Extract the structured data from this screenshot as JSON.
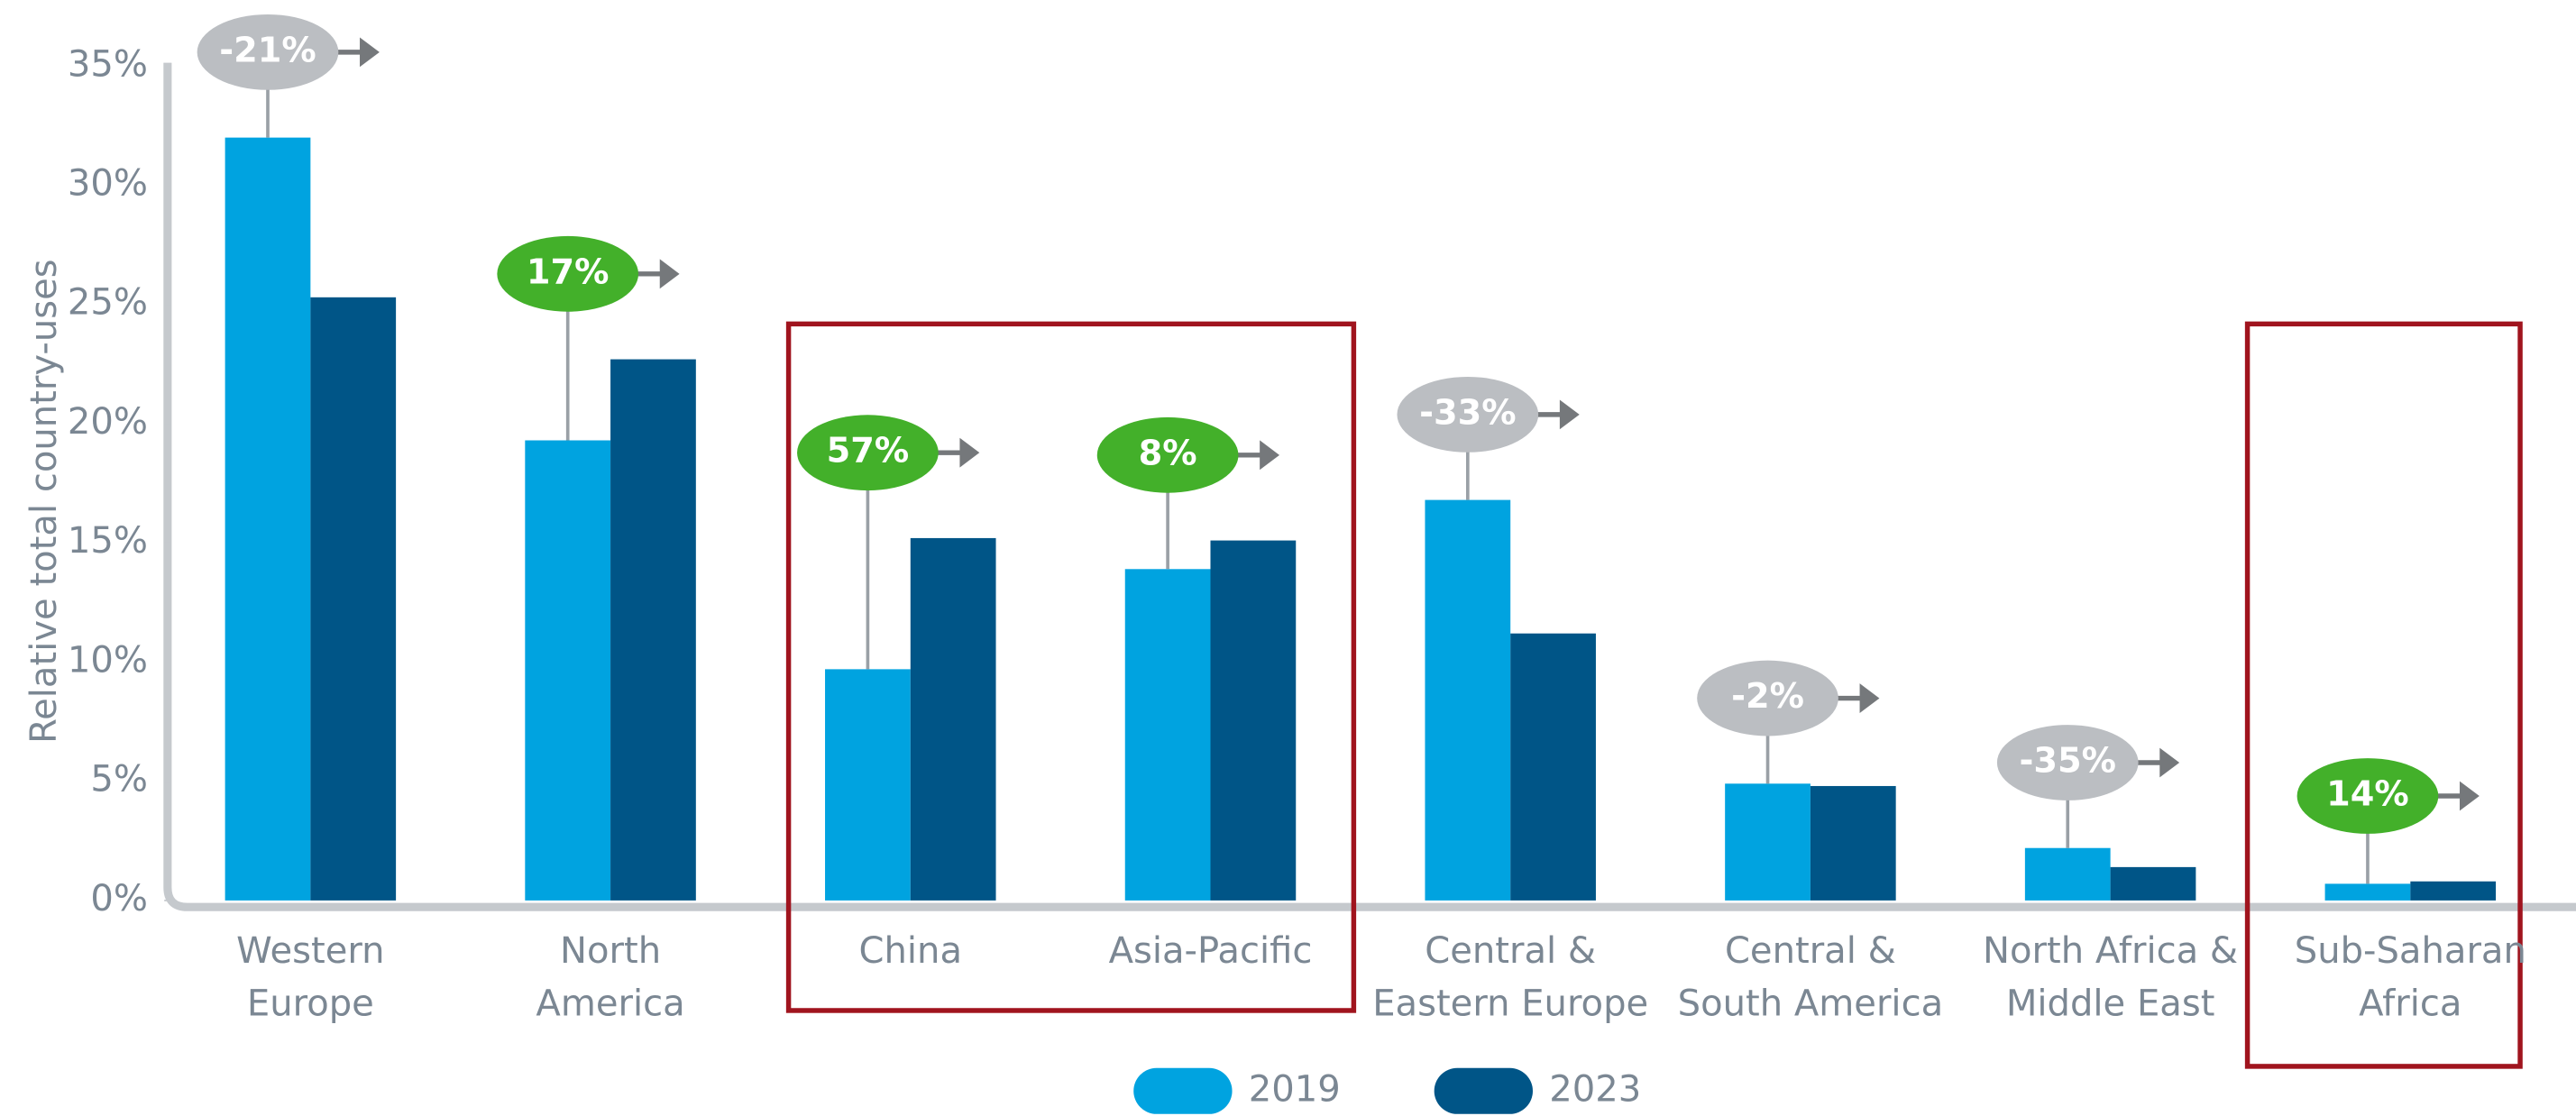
{
  "chart_data": {
    "type": "bar",
    "y_label": "Relative total country-uses",
    "categories": [
      [
        "Western",
        "Europe"
      ],
      [
        "North",
        "America"
      ],
      [
        "China"
      ],
      [
        "Asia-Pacific"
      ],
      [
        "Central &",
        "Eastern Europe"
      ],
      [
        "Central &",
        "South America"
      ],
      [
        "North Africa &",
        "Middle East"
      ],
      [
        "Sub-Saharan",
        "Africa"
      ]
    ],
    "series": [
      {
        "name": "2019",
        "color": "#00a3e0",
        "values": [
          32,
          19.3,
          9.7,
          13.9,
          16.8,
          4.9,
          2.2,
          0.7
        ]
      },
      {
        "name": "2023",
        "color": "#005587",
        "values": [
          25.3,
          22.7,
          15.2,
          15.1,
          11.2,
          4.8,
          1.4,
          0.8
        ]
      }
    ],
    "annotations": [
      {
        "text": "-21%",
        "color": "#bbbec2"
      },
      {
        "text": "17%",
        "color": "#43b02a"
      },
      {
        "text": "57%",
        "color": "#43b02a"
      },
      {
        "text": "8%",
        "color": "#43b02a"
      },
      {
        "text": "-33%",
        "color": "#bbbec2"
      },
      {
        "text": "-2%",
        "color": "#bbbec2"
      },
      {
        "text": "-35%",
        "color": "#bbbec2"
      },
      {
        "text": "14%",
        "color": "#43b02a"
      }
    ],
    "ylim": [
      0,
      35
    ],
    "yticks": [
      {
        "value": 0,
        "label": "0%"
      },
      {
        "value": 5,
        "label": "5%"
      },
      {
        "value": 10,
        "label": "10%"
      },
      {
        "value": 15,
        "label": "15%"
      },
      {
        "value": 20,
        "label": "20%"
      },
      {
        "value": 25,
        "label": "25%"
      },
      {
        "value": 30,
        "label": "30%"
      },
      {
        "value": 35,
        "label": "35%"
      }
    ]
  }
}
